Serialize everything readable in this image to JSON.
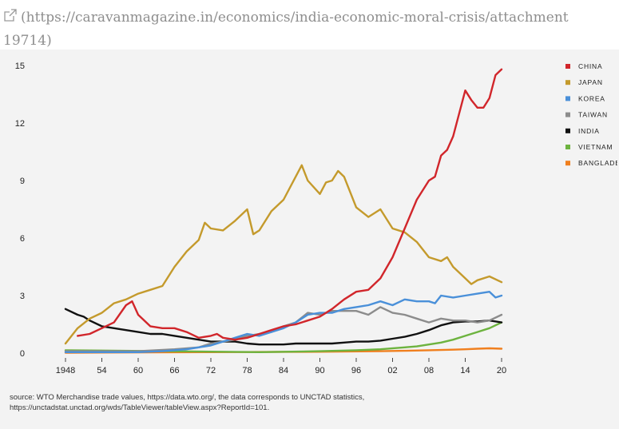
{
  "caption": {
    "line1": "(https://caravanmagazine.in/economics/india-economic-moral-crisis/attachment",
    "line2": "19714)",
    "icon": "external-link-icon"
  },
  "source": {
    "line1": "source: WTO Merchandise trade values, https://data.wto.org/, the data corresponds to UNCTAD statistics,",
    "line2": "https://unctadstat.unctad.org/wds/TableViewer/tableView.aspx?ReportId=101."
  },
  "chart_data": {
    "type": "line",
    "title": "",
    "xlabel": "",
    "ylabel": "",
    "xlim": [
      1948,
      2020
    ],
    "ylim": [
      0,
      15
    ],
    "grid": false,
    "legend_position": "right",
    "x_ticks": [
      "1948",
      "54",
      "60",
      "66",
      "72",
      "78",
      "84",
      "90",
      "96",
      "02",
      "08",
      "14",
      "20"
    ],
    "y_ticks": [
      "0",
      "3",
      "6",
      "9",
      "12",
      "15"
    ],
    "series": [
      {
        "name": "CHINA",
        "color": "#d1262b",
        "x": [
          1950,
          1952,
          1954,
          1956,
          1958,
          1959,
          1960,
          1962,
          1964,
          1966,
          1968,
          1970,
          1972,
          1973,
          1974,
          1976,
          1978,
          1980,
          1982,
          1984,
          1986,
          1988,
          1990,
          1992,
          1994,
          1996,
          1998,
          2000,
          2002,
          2004,
          2006,
          2008,
          2009,
          2010,
          2011,
          2012,
          2013,
          2014,
          2015,
          2016,
          2017,
          2018,
          2019,
          2020
        ],
        "y": [
          0.9,
          1.0,
          1.3,
          1.6,
          2.5,
          2.7,
          2.0,
          1.4,
          1.3,
          1.3,
          1.1,
          0.8,
          0.9,
          1.0,
          0.8,
          0.7,
          0.8,
          1.0,
          1.2,
          1.4,
          1.5,
          1.7,
          1.9,
          2.3,
          2.8,
          3.2,
          3.3,
          3.9,
          5.0,
          6.5,
          8.0,
          9.0,
          9.2,
          10.3,
          10.6,
          11.3,
          12.5,
          13.7,
          13.2,
          12.8,
          12.8,
          13.3,
          14.5,
          14.8
        ]
      },
      {
        "name": "JAPAN",
        "color": "#c49a2c",
        "x": [
          1948,
          1950,
          1952,
          1954,
          1956,
          1958,
          1960,
          1962,
          1964,
          1966,
          1968,
          1970,
          1971,
          1972,
          1974,
          1976,
          1978,
          1979,
          1980,
          1982,
          1984,
          1986,
          1987,
          1988,
          1990,
          1991,
          1992,
          1993,
          1994,
          1996,
          1998,
          2000,
          2002,
          2004,
          2006,
          2008,
          2010,
          2011,
          2012,
          2014,
          2015,
          2016,
          2018,
          2020
        ],
        "y": [
          0.5,
          1.3,
          1.8,
          2.1,
          2.6,
          2.8,
          3.1,
          3.3,
          3.5,
          4.5,
          5.3,
          5.9,
          6.8,
          6.5,
          6.4,
          6.9,
          7.5,
          6.2,
          6.4,
          7.4,
          8.0,
          9.2,
          9.8,
          9.0,
          8.3,
          8.9,
          9.0,
          9.5,
          9.2,
          7.6,
          7.1,
          7.5,
          6.5,
          6.3,
          5.8,
          5.0,
          4.8,
          5.0,
          4.5,
          3.9,
          3.6,
          3.8,
          4.0,
          3.7
        ]
      },
      {
        "name": "KOREA",
        "color": "#4a90d9",
        "x": [
          1948,
          1960,
          1964,
          1968,
          1970,
          1972,
          1974,
          1976,
          1978,
          1980,
          1982,
          1984,
          1986,
          1988,
          1990,
          1992,
          1994,
          1996,
          1998,
          2000,
          2002,
          2004,
          2006,
          2008,
          2009,
          2010,
          2012,
          2014,
          2016,
          2018,
          2019,
          2020
        ],
        "y": [
          0.05,
          0.05,
          0.1,
          0.2,
          0.3,
          0.4,
          0.6,
          0.8,
          1.0,
          0.9,
          1.1,
          1.3,
          1.6,
          2.0,
          2.1,
          2.1,
          2.3,
          2.4,
          2.5,
          2.7,
          2.5,
          2.8,
          2.7,
          2.7,
          2.6,
          3.0,
          2.9,
          3.0,
          3.1,
          3.2,
          2.9,
          3.0
        ]
      },
      {
        "name": "TAIWAN",
        "color": "#8c8c8c",
        "x": [
          1948,
          1960,
          1966,
          1970,
          1972,
          1974,
          1976,
          1978,
          1980,
          1982,
          1984,
          1986,
          1988,
          1990,
          1992,
          1994,
          1996,
          1998,
          2000,
          2002,
          2004,
          2006,
          2008,
          2010,
          2012,
          2014,
          2016,
          2018,
          2020
        ],
        "y": [
          0.1,
          0.1,
          0.2,
          0.3,
          0.5,
          0.6,
          0.7,
          0.9,
          1.0,
          1.1,
          1.4,
          1.6,
          2.1,
          2.0,
          2.2,
          2.2,
          2.2,
          2.0,
          2.4,
          2.1,
          2.0,
          1.8,
          1.6,
          1.8,
          1.7,
          1.7,
          1.6,
          1.7,
          2.0
        ]
      },
      {
        "name": "INDIA",
        "color": "#111111",
        "x": [
          1948,
          1950,
          1951,
          1952,
          1954,
          1956,
          1958,
          1960,
          1962,
          1964,
          1966,
          1968,
          1970,
          1972,
          1974,
          1976,
          1978,
          1980,
          1982,
          1984,
          1986,
          1988,
          1990,
          1992,
          1994,
          1996,
          1998,
          2000,
          2002,
          2004,
          2006,
          2008,
          2010,
          2012,
          2014,
          2016,
          2018,
          2020
        ],
        "y": [
          2.3,
          2.0,
          1.9,
          1.7,
          1.4,
          1.3,
          1.2,
          1.1,
          1.0,
          1.0,
          0.9,
          0.8,
          0.7,
          0.6,
          0.6,
          0.6,
          0.5,
          0.45,
          0.45,
          0.45,
          0.5,
          0.5,
          0.5,
          0.5,
          0.55,
          0.6,
          0.6,
          0.65,
          0.75,
          0.85,
          1.0,
          1.2,
          1.45,
          1.6,
          1.65,
          1.65,
          1.7,
          1.6
        ]
      },
      {
        "name": "VIETNAM",
        "color": "#6db33f",
        "x": [
          1948,
          1980,
          1990,
          1996,
          2000,
          2004,
          2006,
          2008,
          2010,
          2012,
          2014,
          2016,
          2018,
          2020
        ],
        "y": [
          0.15,
          0.05,
          0.1,
          0.15,
          0.2,
          0.3,
          0.35,
          0.45,
          0.55,
          0.7,
          0.9,
          1.1,
          1.3,
          1.6
        ]
      },
      {
        "name": "BANGLADESH",
        "color": "#f07f1e",
        "x": [
          1948,
          1972,
          1980,
          1990,
          2000,
          2004,
          2008,
          2012,
          2014,
          2016,
          2018,
          2020
        ],
        "y": [
          0.02,
          0.05,
          0.06,
          0.07,
          0.1,
          0.12,
          0.15,
          0.18,
          0.2,
          0.23,
          0.25,
          0.23
        ]
      }
    ]
  }
}
